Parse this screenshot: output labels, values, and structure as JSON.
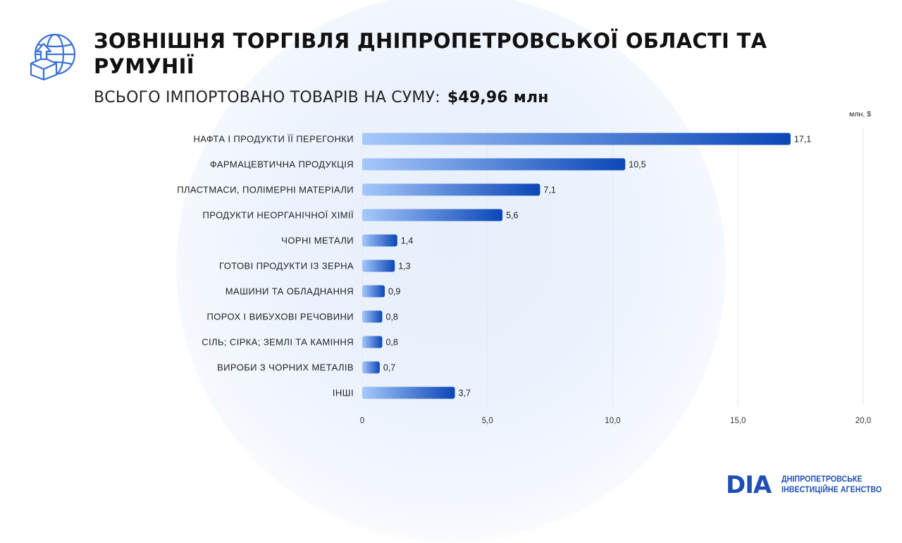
{
  "header": {
    "title": "ЗОВНІШНЯ ТОРГІВЛЯ ДНІПРОПЕТРОВСЬКОЇ ОБЛАСТІ ТА РУМУНІЇ",
    "subtitle_label": "ВСЬОГО ІМПОРТОВАНО ТОВАРІВ НА СУМУ:",
    "subtitle_amount": "$49,96 млн",
    "icon": "globe-box-upload-icon"
  },
  "chart_data": {
    "type": "bar",
    "orientation": "horizontal",
    "unit_label": "млн, $",
    "categories": [
      "НАФТА І ПРОДУКТИ ЇЇ ПЕРЕГОНКИ",
      "ФАРМАЦЕВТИЧНА ПРОДУКЦІЯ",
      "ПЛАСТМАСИ, ПОЛІМЕРНІ МАТЕРІАЛИ",
      "ПРОДУКТИ НЕОРГАНІЧНОЇ ХІМІЇ",
      "ЧОРНІ МЕТАЛИ",
      "ГОТОВІ ПРОДУКТИ ІЗ ЗЕРНА",
      "МАШИНИ ТА ОБЛАДНАННЯ",
      "ПОРОХ І ВИБУХОВІ РЕЧОВИНИ",
      "СІЛЬ; СІРКА; ЗЕМЛІ ТА КАМІННЯ",
      "ВИРОБИ З ЧОРНИХ МЕТАЛІВ",
      "ІНШІ"
    ],
    "values": [
      17.1,
      10.5,
      7.1,
      5.6,
      1.4,
      1.3,
      0.9,
      0.8,
      0.8,
      0.7,
      3.7
    ],
    "value_labels": [
      "17,1",
      "10,5",
      "7,1",
      "5,6",
      "1,4",
      "1,3",
      "0,9",
      "0,8",
      "0,8",
      "0,7",
      "3,7"
    ],
    "xlim": [
      0,
      20
    ],
    "xticks": [
      0,
      5,
      10,
      15,
      20
    ],
    "xtick_labels": [
      "0",
      "5,0",
      "10,0",
      "15,0",
      "20,0"
    ],
    "grid": true,
    "colors": {
      "bar_start": "#a6c8fb",
      "bar_end": "#0b47b7"
    }
  },
  "footer": {
    "logo_mark": "DIA",
    "logo_line1": "ДНІПРОПЕТРОВСЬКЕ",
    "logo_line2": "ІНВЕСТИЦІЙНЕ АГЕНСТВО",
    "brand_color": "#1f4fb5"
  }
}
